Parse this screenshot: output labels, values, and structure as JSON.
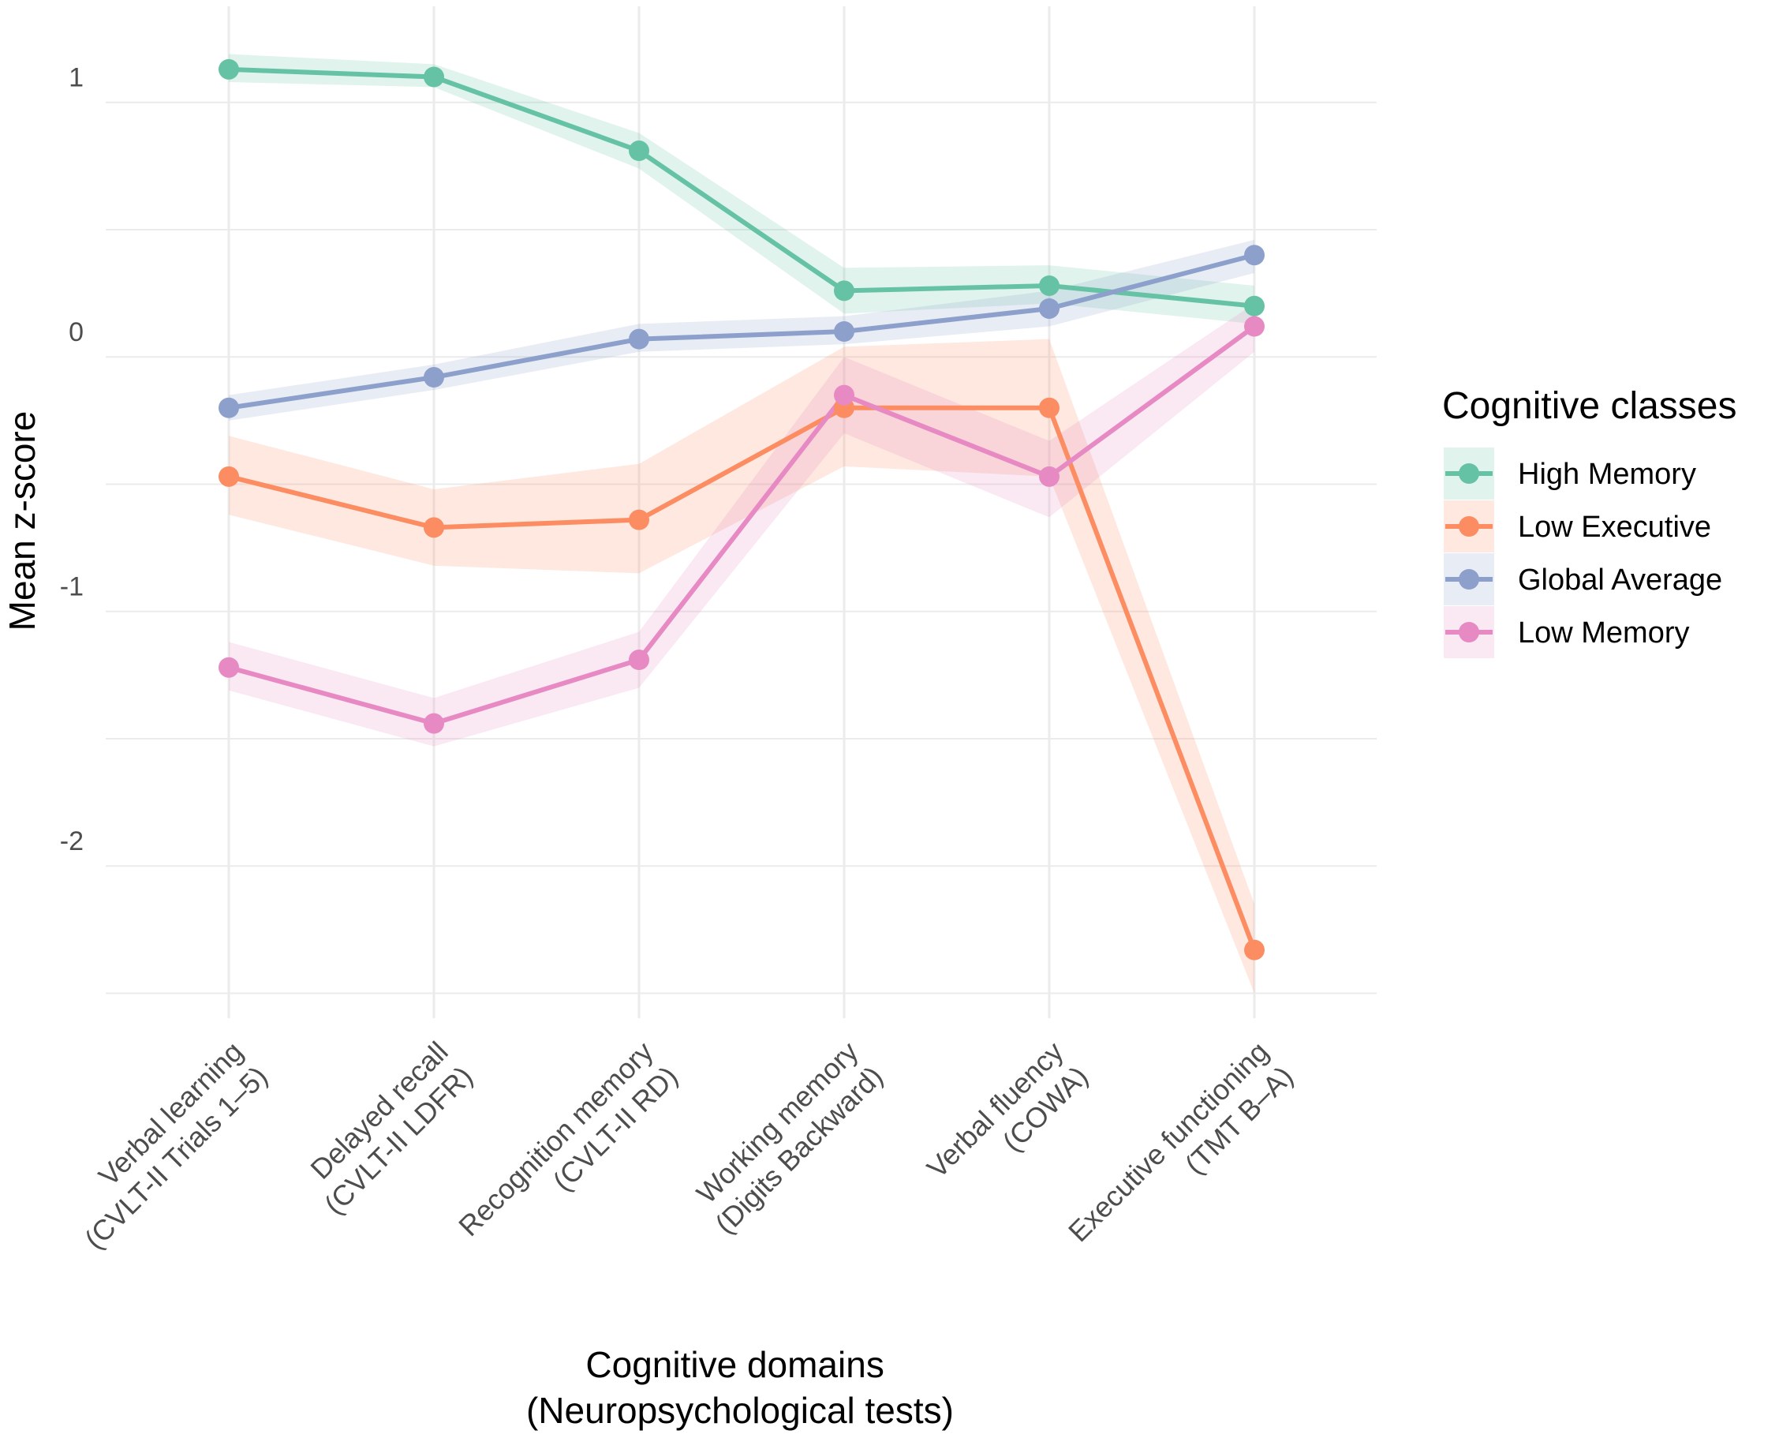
{
  "chart_data": {
    "type": "line",
    "title": "",
    "xlabel": [
      "Cognitive domains",
      "(Neuropsychological tests)"
    ],
    "ylabel": "Mean z-score",
    "ylim": [
      -2.6,
      1.2
    ],
    "yticks": [
      -2,
      -1,
      0,
      1
    ],
    "ytick_labels": [
      "-2",
      "-1",
      "0",
      "1"
    ],
    "grid": true,
    "categories": [
      [
        "Verbal learning",
        "(CVLT-II Trials 1–5)"
      ],
      [
        "Delayed recall",
        "(CVLT-II LDFR)"
      ],
      [
        "Recognition memory",
        "(CVLT-II RD)"
      ],
      [
        "Working memory",
        "(Digits Backward)"
      ],
      [
        "Verbal fluency",
        "(COWA)"
      ],
      [
        "Executive functioning",
        "(TMT B–A)"
      ]
    ],
    "legend": {
      "title": "Cognitive classes",
      "position": "right"
    },
    "series": [
      {
        "name": "High Memory",
        "color": "#66c2a5",
        "values": [
          1.03,
          1.0,
          0.71,
          0.16,
          0.18,
          0.1
        ],
        "lower": [
          0.98,
          0.96,
          0.64,
          0.07,
          0.11,
          0.03
        ],
        "upper": [
          1.09,
          1.05,
          0.78,
          0.25,
          0.26,
          0.18
        ]
      },
      {
        "name": "Low Executive",
        "color": "#fc8d62",
        "values": [
          -0.57,
          -0.77,
          -0.74,
          -0.3,
          -0.3,
          -2.43
        ],
        "lower": [
          -0.72,
          -0.92,
          -0.95,
          -0.53,
          -0.57,
          -2.6
        ],
        "upper": [
          -0.41,
          -0.62,
          -0.52,
          -0.06,
          -0.03,
          -2.25
        ]
      },
      {
        "name": "Global Average",
        "color": "#8da0cb",
        "values": [
          -0.3,
          -0.18,
          -0.03,
          0.0,
          0.09,
          0.3
        ],
        "lower": [
          -0.35,
          -0.23,
          -0.08,
          -0.05,
          0.02,
          0.23
        ],
        "upper": [
          -0.25,
          -0.13,
          0.03,
          0.06,
          0.16,
          0.36
        ]
      },
      {
        "name": "Low Memory",
        "color": "#e78ac3",
        "values": [
          -1.32,
          -1.54,
          -1.29,
          -0.25,
          -0.57,
          0.02
        ],
        "lower": [
          -1.41,
          -1.63,
          -1.4,
          -0.4,
          -0.73,
          -0.08
        ],
        "upper": [
          -1.22,
          -1.44,
          -1.18,
          -0.1,
          -0.43,
          0.11
        ]
      }
    ]
  }
}
